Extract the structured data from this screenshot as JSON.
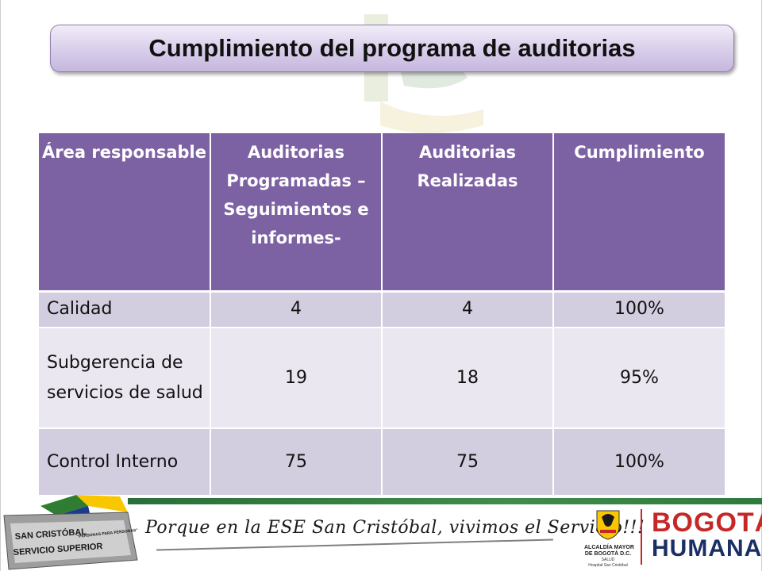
{
  "title": "Cumplimiento del programa de auditorias",
  "table": {
    "headers": [
      "Área responsable",
      "Auditorias Programadas – Seguimientos e informes-",
      "Auditorias Realizadas",
      "Cumplimiento"
    ],
    "rows": [
      {
        "area": "Calidad",
        "programadas": "4",
        "realizadas": "4",
        "cumplimiento": "100%"
      },
      {
        "area": "Subgerencia de servicios de salud",
        "programadas": "19",
        "realizadas": "18",
        "cumplimiento": "95%"
      },
      {
        "area": "Control Interno",
        "programadas": "75",
        "realizadas": "75",
        "cumplimiento": "100%"
      }
    ]
  },
  "footer": {
    "logo_text_1": "SAN CRISTÓBAL",
    "logo_text_2": "SERVICIO SUPERIOR",
    "logo_text_3": "\"PERSONAS PARA PERSONAS\"",
    "slogan": "Porque en la ESE San Cristóbal, vivimos el Servicio!!!",
    "crest_line_1": "ALCALDÍA MAYOR",
    "crest_line_2": "DE BOGOTÁ D.C.",
    "crest_line_3": "SALUD",
    "crest_line_4": "Hospital San Cristóbal",
    "brand_line_1": "BOGOTÁ",
    "brand_line_2": "HUMANA"
  },
  "colors": {
    "header_bg": "#7d62a3",
    "row_dark": "#d3cde0",
    "row_light": "#eae7f0",
    "brand_red": "#c62828",
    "brand_blue": "#1b2f66",
    "footer_green": "#2f7a3f"
  },
  "icons": [
    "watermark-logo-icon",
    "san-cristobal-logo-icon",
    "bogota-crest-icon"
  ]
}
